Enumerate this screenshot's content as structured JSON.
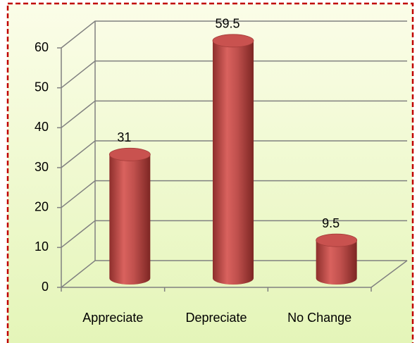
{
  "chart_data": {
    "type": "bar",
    "categories": [
      "Appreciate",
      "Depreciate",
      "No Change"
    ],
    "values": [
      31,
      59.5,
      9.5
    ],
    "color": "#c0504d",
    "ylim": [
      0,
      60
    ],
    "yticks": [
      0,
      10,
      20,
      30,
      40,
      50,
      60
    ],
    "grid": true
  }
}
